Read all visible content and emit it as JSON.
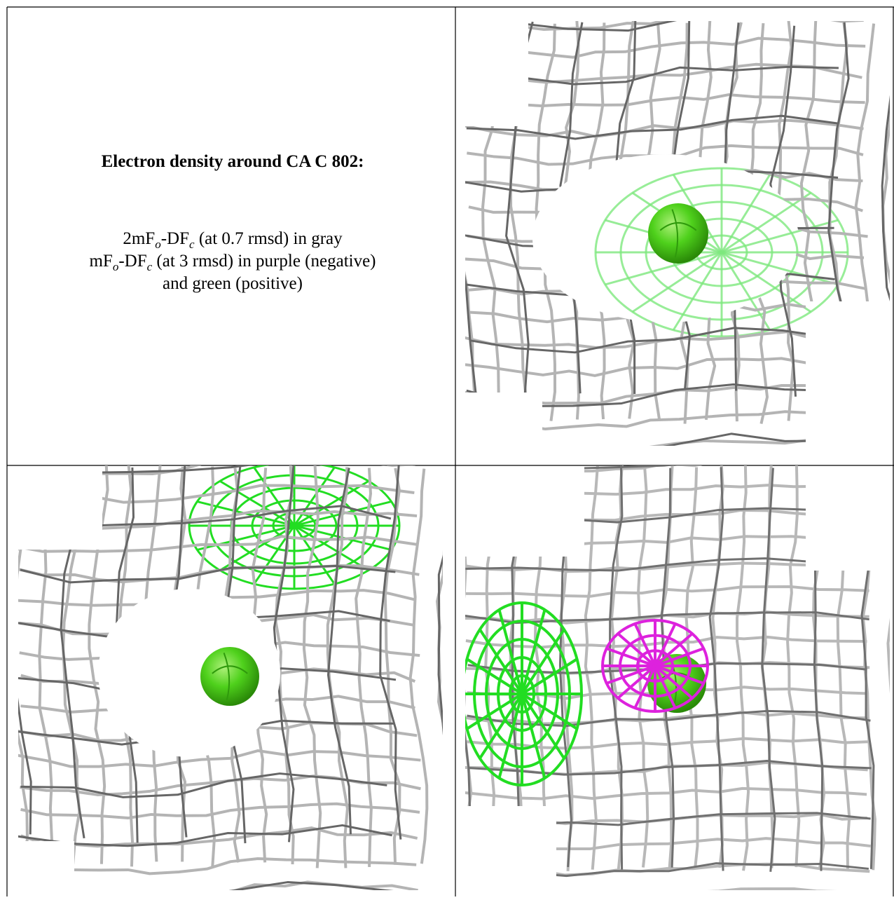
{
  "figure": {
    "title": "Electron density around CA C 802:",
    "legend": [
      [
        "2mF",
        "o",
        "-DF",
        "c",
        " (at 0.7 rmsd) in gray"
      ],
      [
        "mF",
        "o",
        "-DF",
        "c",
        " (at 3 rmsd) in purple (negative)"
      ],
      [
        "and green (positive)"
      ]
    ]
  }
}
